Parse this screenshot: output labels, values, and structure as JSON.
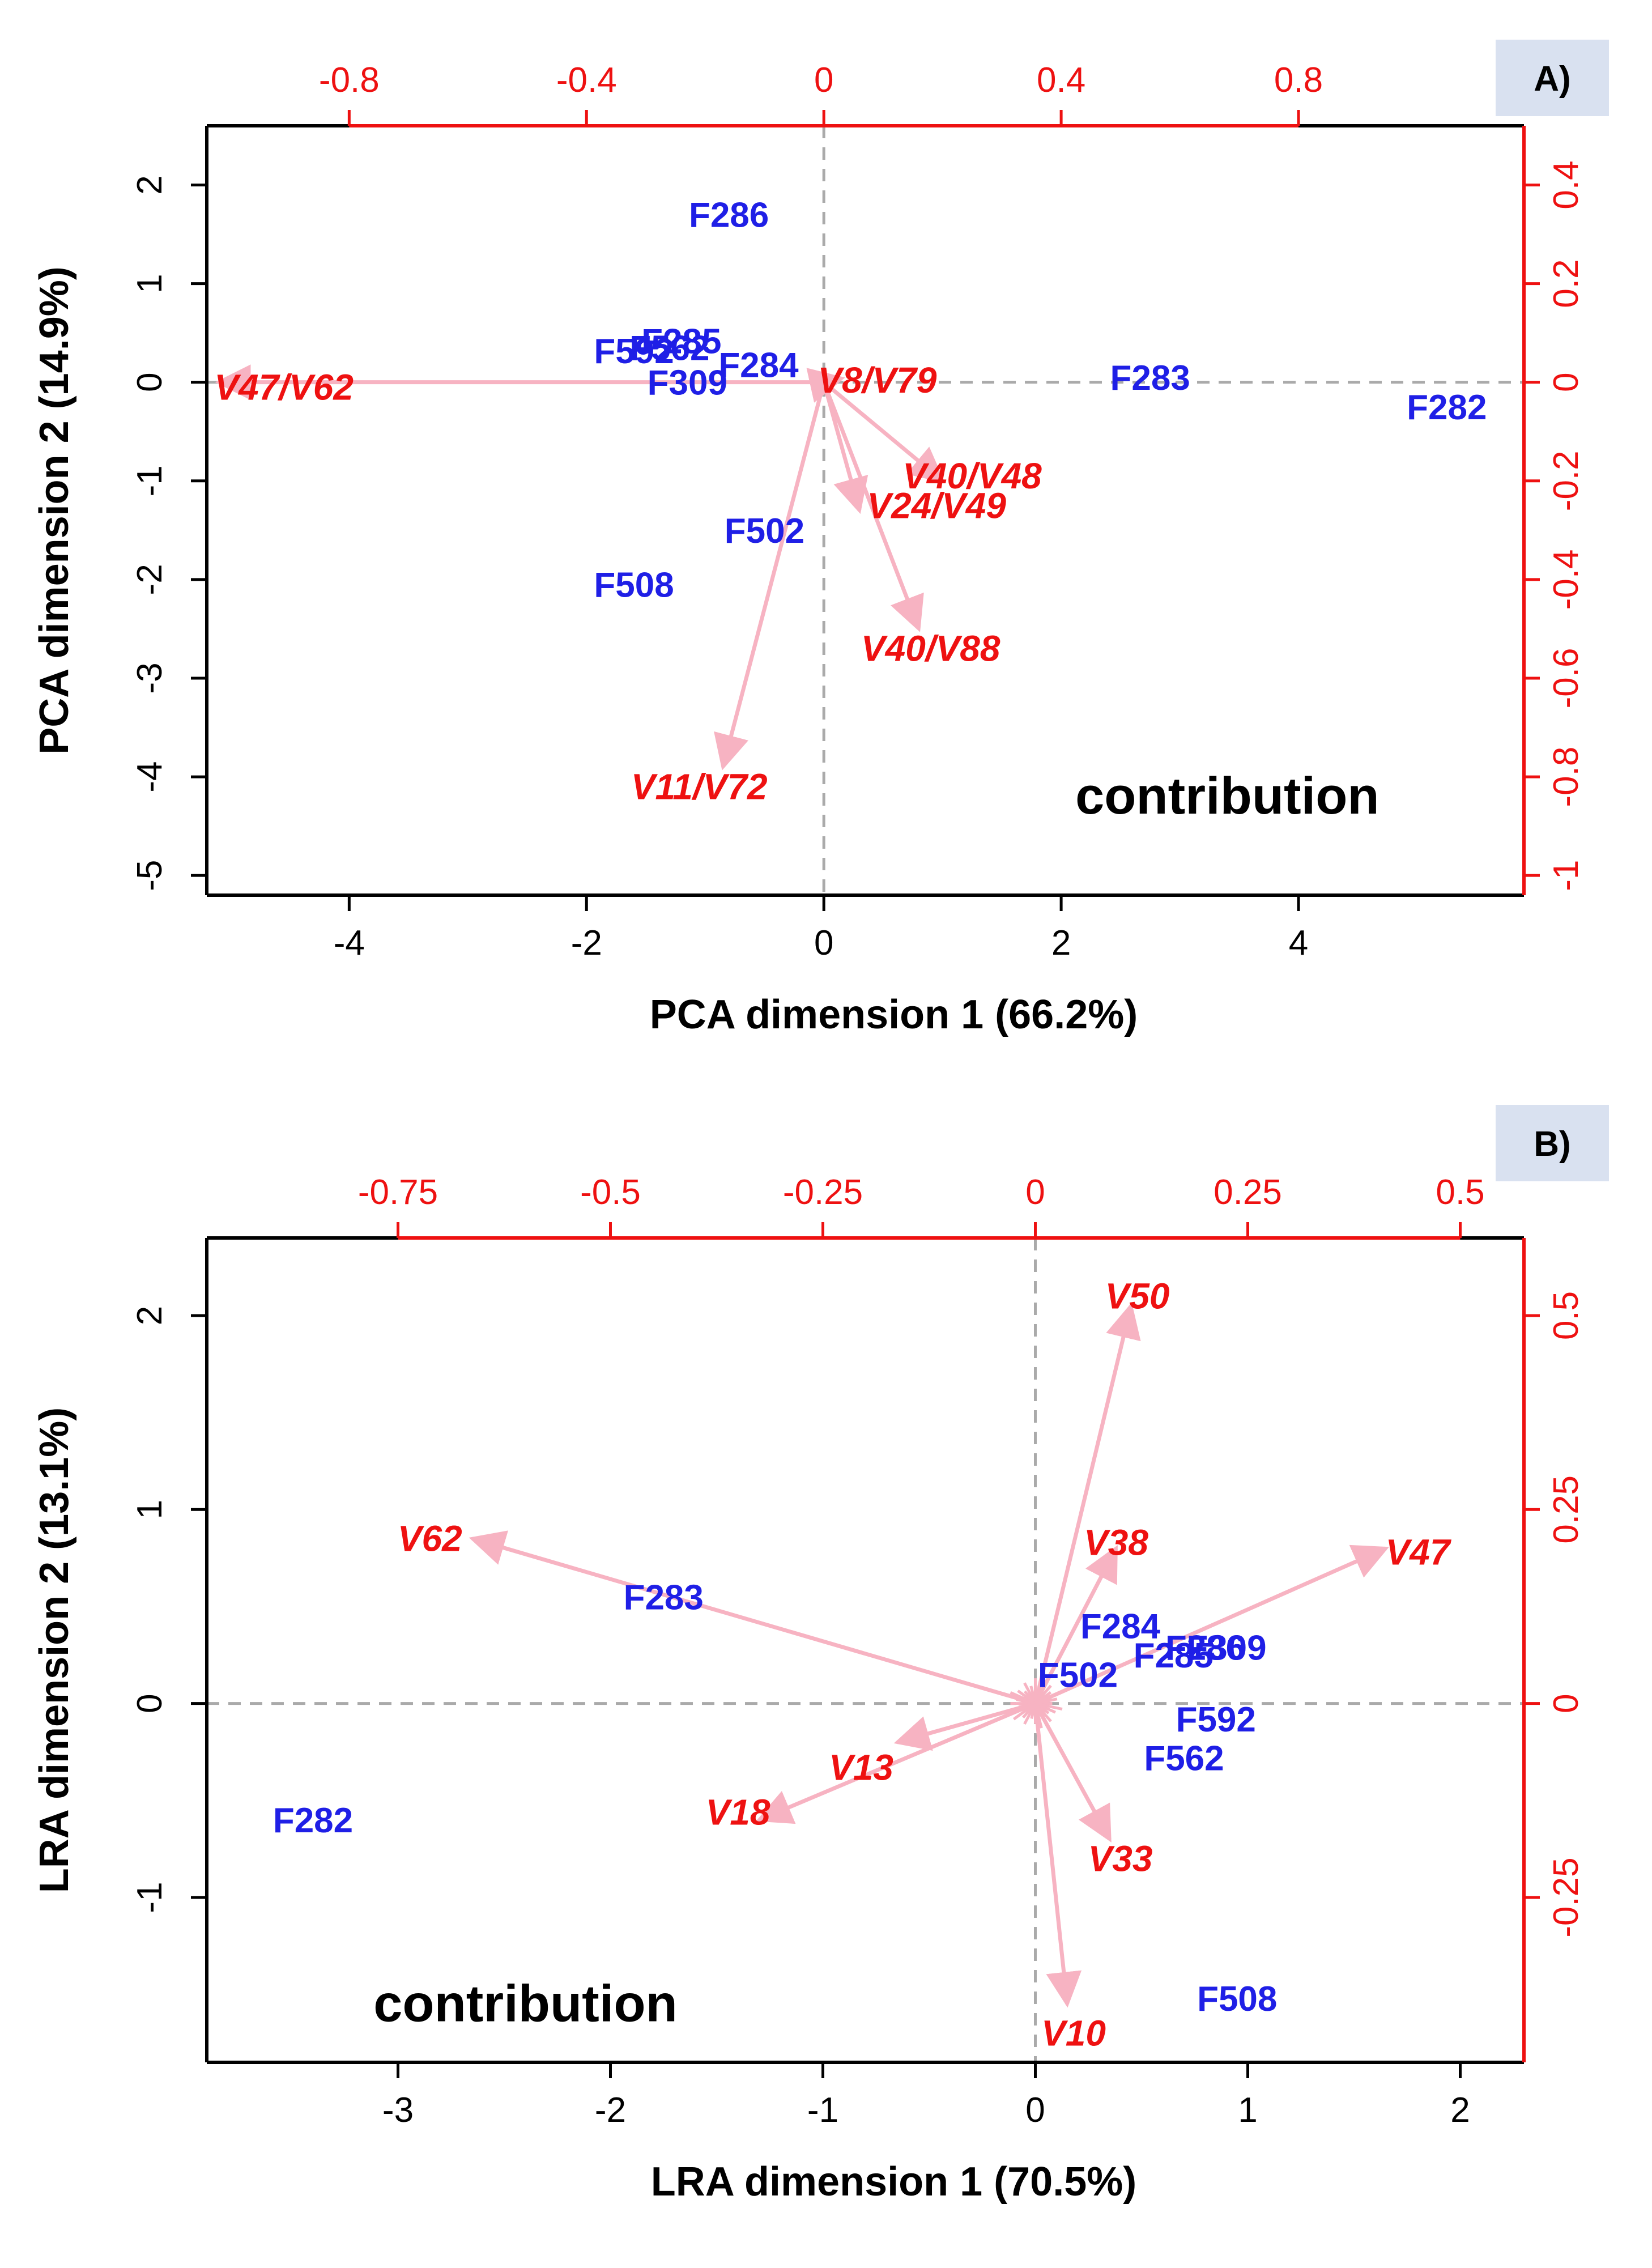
{
  "colors": {
    "points": "#1f1fe6",
    "variables": "#ee1111",
    "arrows": "#f7b3c2",
    "secondary_axis": "#ee1111",
    "ref_lines": "#aaaaaa",
    "frame": "#000000",
    "tag_bg": "#d9e1f0"
  },
  "chart_data": [
    {
      "type": "scatter",
      "subtype": "biplot",
      "panel_label": "A)",
      "annotation": "contribution",
      "xlabel": "PCA dimension 1 (66.2%)",
      "ylabel": "PCA dimension 2 (14.9%)",
      "xlim": [
        -5.2,
        5.9
      ],
      "ylim": [
        -5.2,
        2.6
      ],
      "xticks": [
        -4,
        -2,
        0,
        2,
        4
      ],
      "yticks": [
        -5,
        -4,
        -3,
        -2,
        -1,
        0,
        1,
        2
      ],
      "secondary_x": {
        "label_values": [
          "-0.8",
          "-0.4",
          "0",
          "0.4",
          "0.8"
        ],
        "primary_at": [
          -4,
          -2,
          0,
          2,
          4
        ]
      },
      "secondary_y": {
        "label_values": [
          "-1",
          "-0.8",
          "-0.6",
          "-0.4",
          "-0.2",
          "0",
          "0.2",
          "0.4"
        ],
        "primary_at": [
          -5,
          -4,
          -3,
          -2,
          -1,
          0,
          1,
          2
        ]
      },
      "points": [
        {
          "label": "F286",
          "x": -0.8,
          "y": 1.7
        },
        {
          "label": "F285",
          "x": -1.2,
          "y": 0.42
        },
        {
          "label": "F562",
          "x": -1.3,
          "y": 0.35
        },
        {
          "label": "F592",
          "x": -1.6,
          "y": 0.32
        },
        {
          "label": "F284",
          "x": -0.55,
          "y": 0.18
        },
        {
          "label": "F309",
          "x": -1.15,
          "y": 0.0
        },
        {
          "label": "F283",
          "x": 2.75,
          "y": 0.05
        },
        {
          "label": "F282",
          "x": 5.25,
          "y": -0.25
        },
        {
          "label": "F502",
          "x": -0.5,
          "y": -1.5
        },
        {
          "label": "F508",
          "x": -1.6,
          "y": -2.05
        }
      ],
      "variables": [
        {
          "label": "V47/V62",
          "x": -5.1,
          "y": 0.0,
          "lx": -4.55,
          "ly": -0.05
        },
        {
          "label": "V8/V79",
          "x": 0.15,
          "y": 0.04,
          "lx": 0.45,
          "ly": 0.02
        },
        {
          "label": "V40/V48",
          "x": 1.0,
          "y": -1.0,
          "lx": 1.25,
          "ly": -0.95
        },
        {
          "label": "V24/V49",
          "x": 0.3,
          "y": -1.3,
          "lx": 0.95,
          "ly": -1.25
        },
        {
          "label": "V40/V88",
          "x": 0.8,
          "y": -2.5,
          "lx": 0.9,
          "ly": -2.7
        },
        {
          "label": "V11/V72",
          "x": -0.85,
          "y": -3.9,
          "lx": -1.05,
          "ly": -4.1
        }
      ]
    },
    {
      "type": "scatter",
      "subtype": "biplot",
      "panel_label": "B)",
      "annotation": "contribution",
      "xlabel": "LRA dimension 1 (70.5%)",
      "ylabel": "LRA dimension 2 (13.1%)",
      "xlim": [
        -3.9,
        2.3
      ],
      "ylim": [
        -1.85,
        2.4
      ],
      "xticks": [
        -3,
        -2,
        -1,
        0,
        1,
        2
      ],
      "yticks": [
        -1,
        0,
        1,
        2
      ],
      "secondary_x": {
        "label_values": [
          "-0.75",
          "-0.5",
          "-0.25",
          "0",
          "0.25",
          "0.5"
        ],
        "primary_at": [
          -3,
          -2,
          -1,
          0,
          1,
          2
        ]
      },
      "secondary_y": {
        "label_values": [
          "-0.25",
          "0",
          "0.25",
          "0.5"
        ],
        "primary_at": [
          -1,
          0,
          1,
          2
        ]
      },
      "points": [
        {
          "label": "F283",
          "x": -1.75,
          "y": 0.55
        },
        {
          "label": "F282",
          "x": -3.4,
          "y": -0.6
        },
        {
          "label": "F284",
          "x": 0.4,
          "y": 0.4
        },
        {
          "label": "F285",
          "x": 0.65,
          "y": 0.25
        },
        {
          "label": "F286",
          "x": 0.8,
          "y": 0.29
        },
        {
          "label": "F309",
          "x": 0.9,
          "y": 0.29
        },
        {
          "label": "F502",
          "x": 0.2,
          "y": 0.15
        },
        {
          "label": "F592",
          "x": 0.85,
          "y": -0.08
        },
        {
          "label": "F562",
          "x": 0.7,
          "y": -0.28
        },
        {
          "label": "F508",
          "x": 0.95,
          "y": -1.52
        }
      ],
      "variables": [
        {
          "label": "V50",
          "x": 0.45,
          "y": 2.05,
          "lx": 0.48,
          "ly": 2.1
        },
        {
          "label": "V62",
          "x": -2.65,
          "y": 0.85,
          "lx": -2.85,
          "ly": 0.85
        },
        {
          "label": "V38",
          "x": 0.38,
          "y": 0.8,
          "lx": 0.38,
          "ly": 0.83
        },
        {
          "label": "V47",
          "x": 1.65,
          "y": 0.8,
          "lx": 1.8,
          "ly": 0.78
        },
        {
          "label": "V13",
          "x": -0.65,
          "y": -0.2,
          "lx": -0.82,
          "ly": -0.33
        },
        {
          "label": "V18",
          "x": -1.3,
          "y": -0.6,
          "lx": -1.4,
          "ly": -0.56
        },
        {
          "label": "V33",
          "x": 0.35,
          "y": -0.7,
          "lx": 0.4,
          "ly": -0.8
        },
        {
          "label": "V10",
          "x": 0.15,
          "y": -1.55,
          "lx": 0.18,
          "ly": -1.7
        }
      ]
    }
  ]
}
